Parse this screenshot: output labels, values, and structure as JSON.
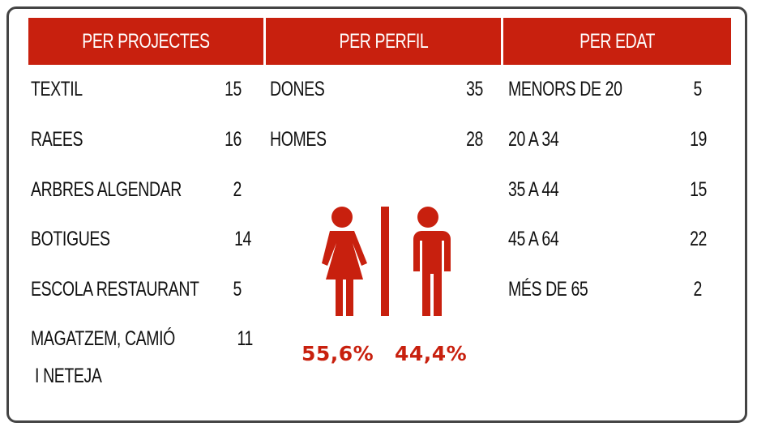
{
  "columns": [
    {
      "header": "PER PROJECTES",
      "rows": [
        {
          "label": "TEXTIL",
          "value": 15
        },
        {
          "label": "RAEES",
          "value": 16
        },
        {
          "label": "ARBRES ALGENDAR",
          "value": 2
        },
        {
          "label": "BOTIGUES",
          "value": 14
        },
        {
          "label": "ESCOLA RESTAURANT",
          "value": 5
        },
        {
          "label": "MAGATZEM, CAMIÓ\n I NETEJA",
          "value": 11
        }
      ]
    },
    {
      "header": "PER PERFIL",
      "rows": [
        {
          "label": "DONES",
          "value": 35
        },
        {
          "label": "HOMES",
          "value": 28
        }
      ]
    },
    {
      "header": "PER EDAT",
      "rows": [
        {
          "label": "MENORS DE 20",
          "value": 5
        },
        {
          "label": "20 A 34",
          "value": 19
        },
        {
          "label": "35 A 44",
          "value": 15
        },
        {
          "label": "45 A 64",
          "value": 22
        },
        {
          "label": "MÉS DE 65",
          "value": 2
        }
      ]
    }
  ],
  "percentages": [
    "55,6%",
    "44,4%"
  ]
}
